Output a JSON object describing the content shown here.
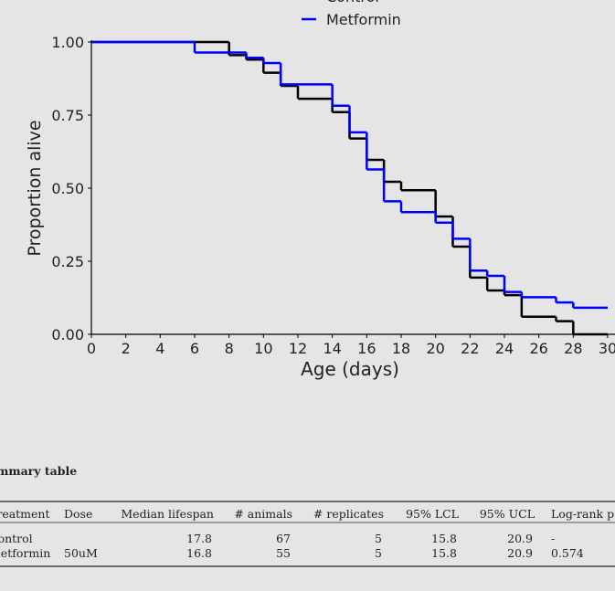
{
  "chart_data": {
    "type": "step",
    "xlabel": "Age (days)",
    "ylabel": "Proportion alive",
    "xlim": [
      0,
      30
    ],
    "ylim": [
      0,
      1
    ],
    "xticks": [
      0,
      2,
      4,
      6,
      8,
      10,
      12,
      14,
      16,
      18,
      20,
      22,
      24,
      26,
      28,
      30
    ],
    "yticks": [
      {
        "value": 0,
        "label": "0.00"
      },
      {
        "value": 0.25,
        "label": "0.25"
      },
      {
        "value": 0.5,
        "label": "0.50"
      },
      {
        "value": 0.75,
        "label": "0.75"
      },
      {
        "value": 1,
        "label": "1.00"
      }
    ],
    "legend": "upper center",
    "series": [
      {
        "name": "Control",
        "color": "#000000",
        "x": [
          0,
          8,
          9,
          10,
          11,
          12,
          14,
          15,
          16,
          17,
          18,
          20,
          21,
          22,
          23,
          24,
          25,
          27,
          28
        ],
        "values": [
          1,
          0.955,
          0.94,
          0.895,
          0.85,
          0.806,
          0.76,
          0.67,
          0.597,
          0.522,
          0.493,
          0.403,
          0.3,
          0.194,
          0.15,
          0.134,
          0.06,
          0.045,
          0
        ]
      },
      {
        "name": "Metformin",
        "color": "#0000ff",
        "x": [
          0,
          6,
          9,
          10,
          11,
          14,
          15,
          16,
          17,
          18,
          20,
          21,
          22,
          23,
          24,
          25,
          27,
          28
        ],
        "values": [
          1,
          0.964,
          0.946,
          0.928,
          0.855,
          0.782,
          0.691,
          0.564,
          0.455,
          0.418,
          0.382,
          0.327,
          0.218,
          0.2,
          0.145,
          0.127,
          0.109,
          0.091
        ]
      }
    ]
  },
  "table": {
    "title": "Summary table",
    "columns": [
      "Treatment",
      "Dose",
      "Median lifespan",
      "# animals",
      "# replicates",
      "95% LCL",
      "95% UCL",
      "Log-rank p"
    ],
    "rows": [
      [
        "Control",
        null,
        17.8,
        67,
        5,
        15.8,
        20.9,
        "-"
      ],
      [
        "Metformin",
        "50uM",
        16.8,
        55,
        5,
        15.8,
        20.9,
        0.574
      ]
    ]
  }
}
